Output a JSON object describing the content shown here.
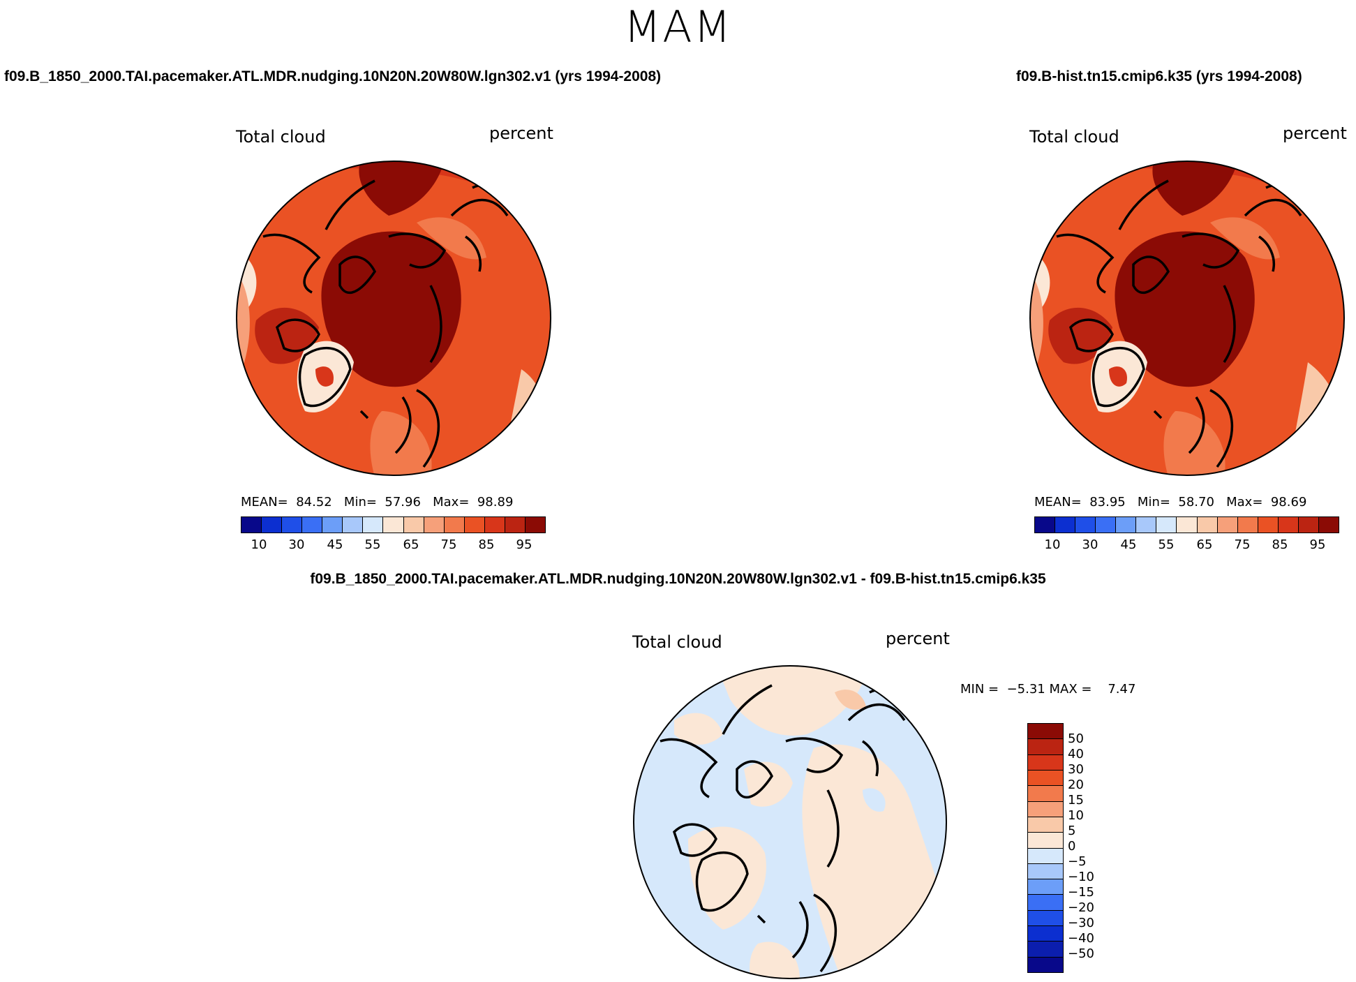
{
  "season": "MAM",
  "panel_left": {
    "case_title": "f09.B_1850_2000.TAI.pacemaker.ATL.MDR.nudging.10N20N.20W80W.lgn302.v1 (yrs 1994-2008)",
    "variable": "Total cloud",
    "units": "percent",
    "mean_label": "MEAN=",
    "mean": "84.52",
    "min_label": "Min=",
    "min": "57.96",
    "max_label": "Max=",
    "max": "98.89"
  },
  "panel_right": {
    "case_title": "f09.B-hist.tn15.cmip6.k35 (yrs 1994-2008)",
    "variable": "Total cloud",
    "units": "percent",
    "mean_label": "MEAN=",
    "mean": "83.95",
    "min_label": "Min=",
    "min": "58.70",
    "max_label": "Max=",
    "max": "98.69"
  },
  "panel_diff": {
    "title": "f09.B_1850_2000.TAI.pacemaker.ATL.MDR.nudging.10N20N.20W80W.lgn302.v1 - f09.B-hist.tn15.cmip6.k35",
    "variable": "Total cloud",
    "units": "percent",
    "min_label": "MIN =",
    "min": "−5.31",
    "max_label": "MAX =",
    "max": "7.47"
  },
  "colorbar_abs": {
    "colors": [
      "#08088a",
      "#0c2fd0",
      "#1f4fe8",
      "#3a6ff5",
      "#6c9ef8",
      "#a8c8fa",
      "#d6e8fb",
      "#fbe7d6",
      "#f9c9a9",
      "#f6a07a",
      "#f27a4c",
      "#ea5224",
      "#d8361a",
      "#bb2412",
      "#8b0b05"
    ],
    "tick_labels": [
      "10",
      "30",
      "45",
      "55",
      "65",
      "75",
      "85",
      "95"
    ]
  },
  "colorbar_diff": {
    "colors": [
      "#8b0b05",
      "#bb2412",
      "#d8361a",
      "#ea5224",
      "#f27a4c",
      "#f6a07a",
      "#f9c9a9",
      "#fbe7d6",
      "#d6e8fb",
      "#a8c8fa",
      "#6c9ef8",
      "#3a6ff5",
      "#1f4fe8",
      "#0c2fd0",
      "#0b1eae",
      "#08088a"
    ],
    "tick_labels": [
      "50",
      "40",
      "30",
      "20",
      "15",
      "10",
      "5",
      "0",
      "−5",
      "−10",
      "−15",
      "−20",
      "−30",
      "−40",
      "−50"
    ]
  }
}
